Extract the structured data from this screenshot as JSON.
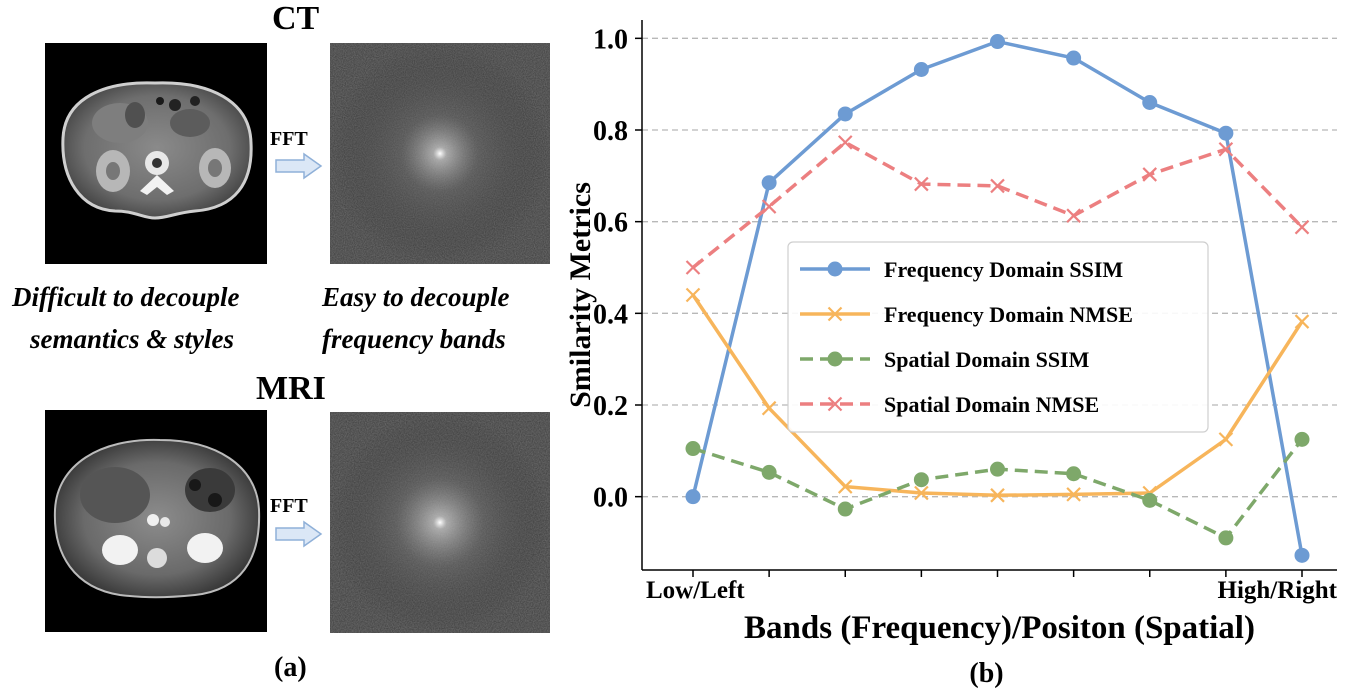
{
  "panel_a": {
    "ct_title": "CT",
    "mri_title": "MRI",
    "fft_label_top": "FFT",
    "fft_label_bottom": "FFT",
    "caption_left_line1": "Difficult to decouple",
    "caption_left_line2": "semantics & styles",
    "caption_right_line1": "Easy to decouple",
    "caption_right_line2": "frequency bands",
    "sublabel": "(a)"
  },
  "panel_b": {
    "sublabel": "(b)"
  },
  "colors": {
    "blue": "#6d9bd3",
    "orange": "#f7b55b",
    "green": "#7ea86a",
    "red": "#ec7f80",
    "arrow_fill": "#dbe7f6",
    "arrow_stroke": "#8fb0d8"
  },
  "chart_data": {
    "type": "line",
    "xlabel": "Bands (Frequency)/Positon (Spatial)",
    "ylabel": "Smilarity Metrics",
    "x_tick_labels": [
      "Low/Left",
      "High/Right"
    ],
    "x": [
      0,
      1,
      2,
      3,
      4,
      5,
      6,
      7,
      8
    ],
    "ylim": [
      -0.16,
      1.04
    ],
    "yticks": [
      0.0,
      0.2,
      0.4,
      0.6,
      0.8,
      1.0
    ],
    "ytick_labels": [
      "0.0",
      "0.2",
      "0.4",
      "0.6",
      "0.8",
      "1.0"
    ],
    "grid": "horizontal-dashed",
    "legend_position": "center-right",
    "series": [
      {
        "name": "Frequency Domain SSIM",
        "values": [
          0.0,
          0.685,
          0.835,
          0.932,
          0.993,
          0.957,
          0.86,
          0.793,
          -0.128
        ],
        "color": "#6d9bd3",
        "dash": "solid",
        "marker": "circle"
      },
      {
        "name": "Frequency Domain NMSE",
        "values": [
          0.44,
          0.193,
          0.022,
          0.008,
          0.003,
          0.005,
          0.008,
          0.125,
          0.382
        ],
        "color": "#f7b55b",
        "dash": "solid",
        "marker": "x"
      },
      {
        "name": "Spatial Domain SSIM",
        "values": [
          0.105,
          0.053,
          -0.027,
          0.037,
          0.06,
          0.05,
          -0.008,
          -0.09,
          0.125
        ],
        "color": "#7ea86a",
        "dash": "dashed",
        "marker": "circle"
      },
      {
        "name": "Spatial Domain NMSE",
        "values": [
          0.5,
          0.633,
          0.773,
          0.682,
          0.678,
          0.613,
          0.703,
          0.758,
          0.588
        ],
        "color": "#ec7f80",
        "dash": "dashed",
        "marker": "x"
      }
    ]
  }
}
